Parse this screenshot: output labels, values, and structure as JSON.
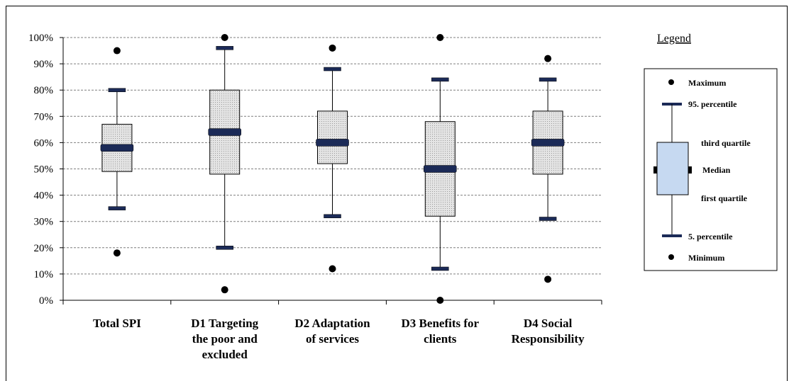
{
  "chart_data": {
    "type": "boxplot",
    "y_axis": {
      "min": 0,
      "max": 100,
      "step": 10,
      "unit": "%"
    },
    "ylim": [
      0,
      100
    ],
    "y_ticks": [
      "0%",
      "10%",
      "20%",
      "30%",
      "40%",
      "50%",
      "60%",
      "70%",
      "80%",
      "90%",
      "100%"
    ],
    "grid": "horizontal dashed",
    "categories": [
      {
        "label_lines": [
          "Total SPI"
        ],
        "min": 18,
        "p5": 35,
        "q1": 49,
        "median": 58,
        "q3": 67,
        "p95": 80,
        "max": 95
      },
      {
        "label_lines": [
          "D1 Targeting",
          "the poor and",
          "excluded"
        ],
        "min": 4,
        "p5": 20,
        "q1": 48,
        "median": 64,
        "q3": 80,
        "p95": 96,
        "max": 100
      },
      {
        "label_lines": [
          "D2 Adaptation",
          "of services"
        ],
        "min": 12,
        "p5": 32,
        "q1": 52,
        "median": 60,
        "q3": 72,
        "p95": 88,
        "max": 96
      },
      {
        "label_lines": [
          "D3 Benefits for",
          "clients"
        ],
        "min": 0,
        "p5": 12,
        "q1": 32,
        "median": 50,
        "q3": 68,
        "p95": 84,
        "max": 100
      },
      {
        "label_lines": [
          "D4 Social",
          "Responsibility"
        ],
        "min": 8,
        "p5": 31,
        "q1": 48,
        "median": 60,
        "q3": 72,
        "p95": 84,
        "max": 92
      }
    ],
    "colors": {
      "box_fill": "#d6d6d6",
      "box_dots": "#9a9a9a",
      "median_bar": "#1b2a57",
      "point": "#000000",
      "legend_box": "#c6d9f1"
    },
    "legend": {
      "position": "right",
      "title": "Legend",
      "items": {
        "maximum": "Maximum",
        "p95": "95. percentile",
        "q3": "third quartile",
        "median": "Median",
        "q1": "first quartile",
        "p5": "5. percentile",
        "minimum": "Minimum"
      }
    }
  }
}
